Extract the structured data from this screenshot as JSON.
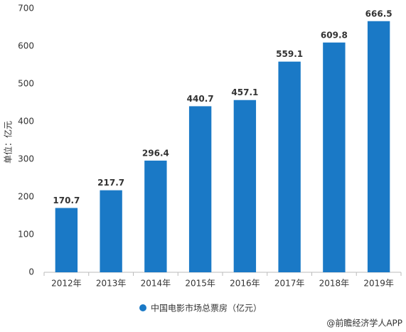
{
  "chart_data": {
    "type": "bar",
    "y_label": "单位：亿元",
    "categories": [
      "2012年",
      "2013年",
      "2014年",
      "2015年",
      "2016年",
      "2017年",
      "2018年",
      "2019年"
    ],
    "series": [
      {
        "name": "中国电影市场总票房（亿元）",
        "color": "#1a79c6",
        "values": [
          170.7,
          217.7,
          296.4,
          440.7,
          457.1,
          559.1,
          609.8,
          666.5
        ]
      }
    ],
    "ylim": [
      0,
      700
    ],
    "yticks": [
      0,
      100,
      200,
      300,
      400,
      500,
      600,
      700
    ],
    "grid": false,
    "legend": "bottom",
    "source": "@前瞻经济学人APP"
  }
}
